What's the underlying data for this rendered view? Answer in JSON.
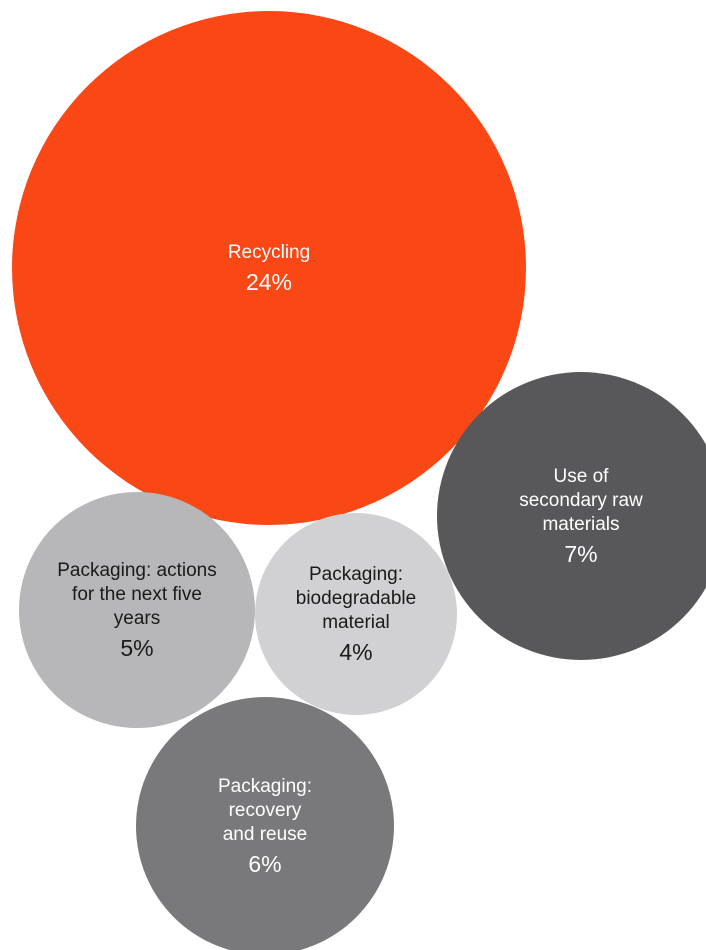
{
  "chart_data": {
    "type": "bubble",
    "unit": "%",
    "bubbles": [
      {
        "name_lines": [
          "Recycling"
        ],
        "label": "24%",
        "value": 24,
        "color": "#fa4716",
        "text_color": "#ffffff"
      },
      {
        "name_lines": [
          "Use of",
          "secondary raw",
          "materials"
        ],
        "label": "7%",
        "value": 7,
        "color": "#58585a",
        "text_color": "#ffffff"
      },
      {
        "name_lines": [
          "Packaging: actions",
          "for the next five",
          "years"
        ],
        "label": "5%",
        "value": 5,
        "color": "#b7b7b9",
        "text_color": "#1a1a1a"
      },
      {
        "name_lines": [
          "Packaging:",
          "biodegradable",
          "material"
        ],
        "label": "4%",
        "value": 4,
        "color": "#d1d1d3",
        "text_color": "#1a1a1a"
      },
      {
        "name_lines": [
          "Packaging:",
          "recovery",
          "and reuse"
        ],
        "label": "6%",
        "value": 6,
        "color": "#79797b",
        "text_color": "#ffffff"
      }
    ]
  }
}
